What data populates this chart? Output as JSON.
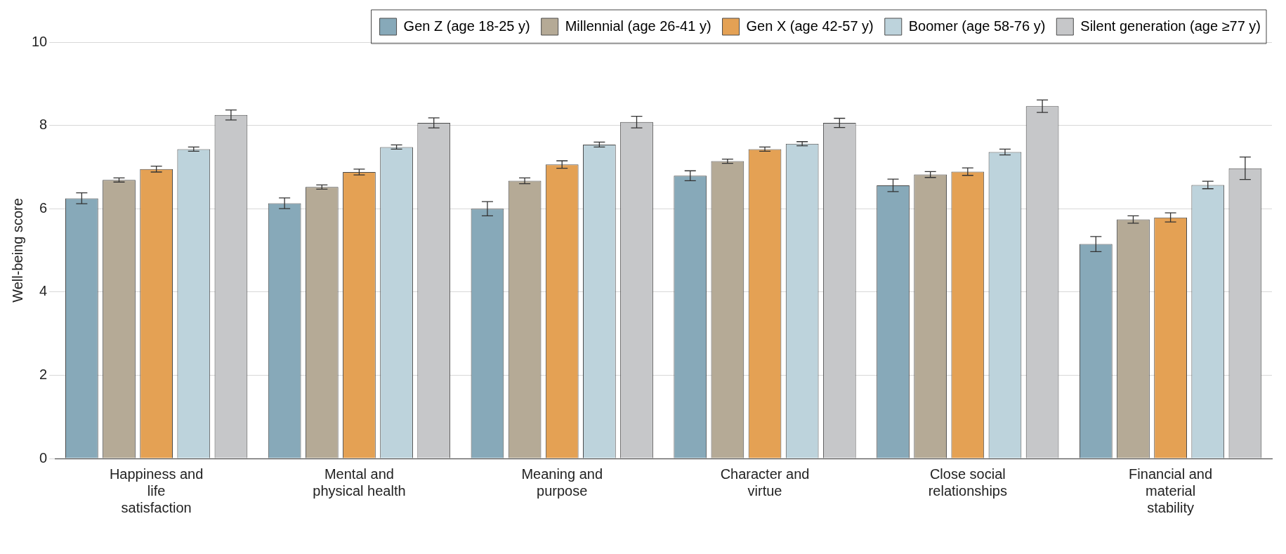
{
  "chart_data": {
    "type": "bar",
    "ylabel": "Well-being score",
    "categories": [
      "Happiness and life satisfaction",
      "Mental and physical health",
      "Meaning and purpose",
      "Character and virtue",
      "Close social relationships",
      "Financial and material stability"
    ],
    "series": [
      {
        "name": "Gen Z (age 18-25 y)",
        "color": "#87a9b9",
        "values": [
          6.25,
          6.13,
          6.0,
          6.79,
          6.56,
          5.15
        ],
        "errors": [
          0.13,
          0.13,
          0.17,
          0.12,
          0.15,
          0.18
        ]
      },
      {
        "name": "Millennial (age 26-41 y)",
        "color": "#b5aa96",
        "values": [
          6.69,
          6.52,
          6.67,
          7.14,
          6.82,
          5.74
        ],
        "errors": [
          0.05,
          0.05,
          0.07,
          0.05,
          0.07,
          0.09
        ]
      },
      {
        "name": "Gen X (age 42-57 y)",
        "color": "#e4a154",
        "values": [
          6.95,
          6.88,
          7.06,
          7.43,
          6.89,
          5.79
        ],
        "errors": [
          0.07,
          0.07,
          0.09,
          0.05,
          0.09,
          0.11
        ]
      },
      {
        "name": "Boomer (age 58-76 y)",
        "color": "#bdd3dc",
        "values": [
          7.43,
          7.48,
          7.54,
          7.56,
          7.36,
          6.57
        ],
        "errors": [
          0.05,
          0.05,
          0.06,
          0.05,
          0.07,
          0.09
        ]
      },
      {
        "name": "Silent generation (age ≥77 y)",
        "color": "#c6c7c9",
        "values": [
          8.25,
          8.06,
          8.08,
          8.06,
          8.46,
          6.97
        ],
        "errors": [
          0.12,
          0.12,
          0.14,
          0.11,
          0.15,
          0.27
        ]
      }
    ],
    "ylim": [
      0,
      10
    ],
    "yticks": [
      0,
      2,
      4,
      6,
      8,
      10
    ],
    "grid": "y",
    "legend": "top right"
  }
}
